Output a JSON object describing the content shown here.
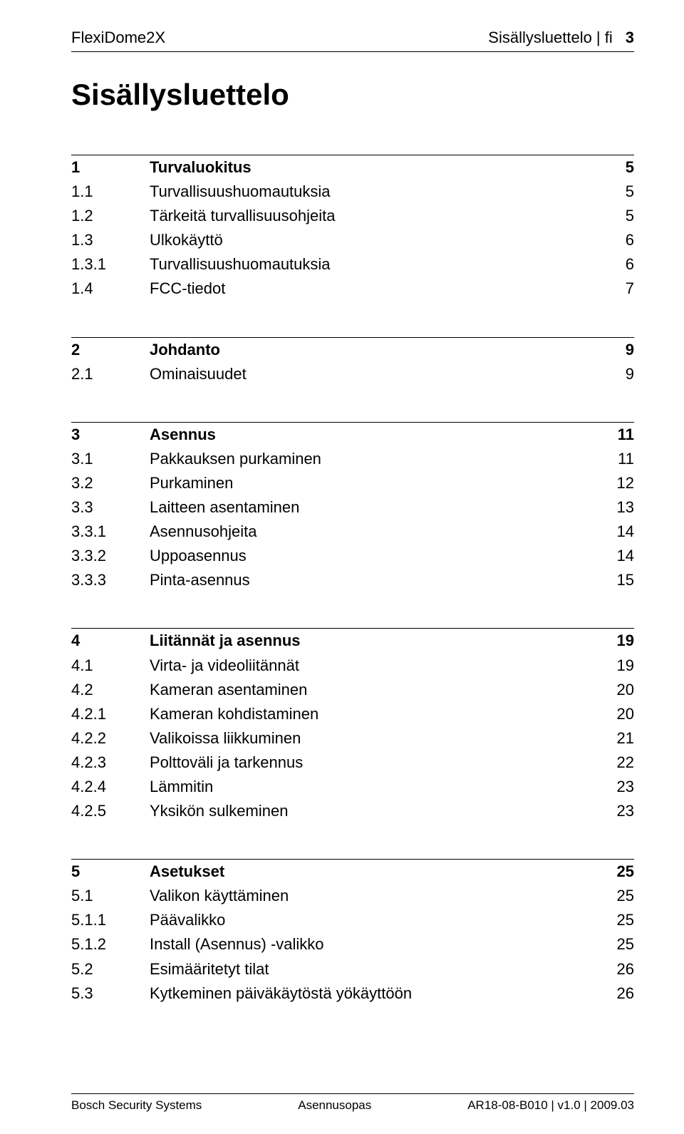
{
  "header": {
    "left": "FlexiDome2X",
    "right_text": "Sisällysluettelo | fi",
    "page_number": "3"
  },
  "toc_title": "Sisällysluettelo",
  "sections": [
    {
      "head": {
        "num": "1",
        "title": "Turvaluokitus",
        "page": "5"
      },
      "items": [
        {
          "num": "1.1",
          "title": "Turvallisuushuomautuksia",
          "page": "5"
        },
        {
          "num": "1.2",
          "title": "Tärkeitä turvallisuusohjeita",
          "page": "5"
        },
        {
          "num": "1.3",
          "title": "Ulkokäyttö",
          "page": "6"
        },
        {
          "num": "1.3.1",
          "title": "Turvallisuushuomautuksia",
          "page": "6"
        },
        {
          "num": "1.4",
          "title": "FCC-tiedot",
          "page": "7"
        }
      ]
    },
    {
      "head": {
        "num": "2",
        "title": "Johdanto",
        "page": "9"
      },
      "items": [
        {
          "num": "2.1",
          "title": "Ominaisuudet",
          "page": "9"
        }
      ]
    },
    {
      "head": {
        "num": "3",
        "title": "Asennus",
        "page": "11"
      },
      "items": [
        {
          "num": "3.1",
          "title": "Pakkauksen purkaminen",
          "page": "11"
        },
        {
          "num": "3.2",
          "title": "Purkaminen",
          "page": "12"
        },
        {
          "num": "3.3",
          "title": "Laitteen asentaminen",
          "page": "13"
        },
        {
          "num": "3.3.1",
          "title": "Asennusohjeita",
          "page": "14"
        },
        {
          "num": "3.3.2",
          "title": "Uppoasennus",
          "page": "14"
        },
        {
          "num": "3.3.3",
          "title": "Pinta-asennus",
          "page": "15"
        }
      ]
    },
    {
      "head": {
        "num": "4",
        "title": "Liitännät ja asennus",
        "page": "19"
      },
      "items": [
        {
          "num": "4.1",
          "title": "Virta- ja videoliitännät",
          "page": "19"
        },
        {
          "num": "4.2",
          "title": "Kameran asentaminen",
          "page": "20"
        },
        {
          "num": "4.2.1",
          "title": "Kameran kohdistaminen",
          "page": "20"
        },
        {
          "num": "4.2.2",
          "title": "Valikoissa liikkuminen",
          "page": "21"
        },
        {
          "num": "4.2.3",
          "title": "Polttoväli ja tarkennus",
          "page": "22"
        },
        {
          "num": "4.2.4",
          "title": "Lämmitin",
          "page": "23"
        },
        {
          "num": "4.2.5",
          "title": "Yksikön sulkeminen",
          "page": "23"
        }
      ]
    },
    {
      "head": {
        "num": "5",
        "title": "Asetukset",
        "page": "25"
      },
      "items": [
        {
          "num": "5.1",
          "title": "Valikon käyttäminen",
          "page": "25"
        },
        {
          "num": "5.1.1",
          "title": "Päävalikko",
          "page": "25"
        },
        {
          "num": "5.1.2",
          "title": "Install (Asennus) -valikko",
          "page": "25"
        },
        {
          "num": "5.2",
          "title": "Esimääritetyt tilat",
          "page": "26"
        },
        {
          "num": "5.3",
          "title": "Kytkeminen päiväkäytöstä yökäyttöön",
          "page": "26"
        }
      ]
    }
  ],
  "footer": {
    "left": "Bosch Security Systems",
    "center": "Asennusopas",
    "right": "AR18-08-B010 | v1.0 | 2009.03"
  }
}
